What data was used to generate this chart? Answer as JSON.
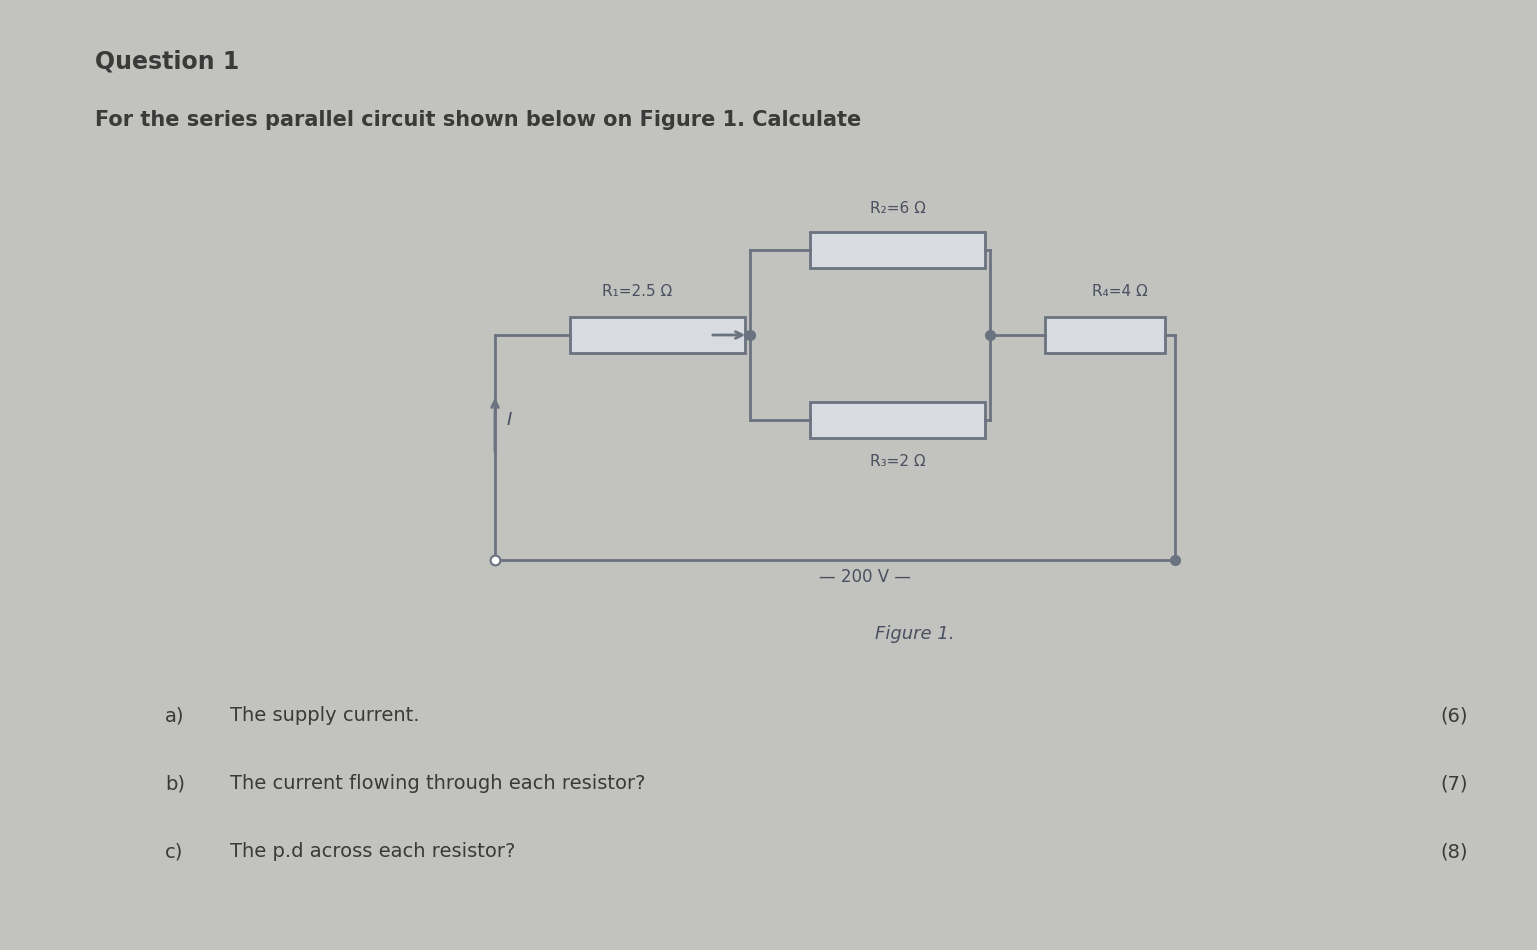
{
  "bg_color": "#c2c2be",
  "title": "Question 1",
  "subtitle": "For the series parallel circuit shown below on Figure 1. Calculate",
  "figure_label": "Figure 1.",
  "questions": [
    {
      "label": "a)",
      "text": "The supply current.",
      "mark": "(6)"
    },
    {
      "label": "b)",
      "text": "The current flowing through each resistor?",
      "mark": "(7)"
    },
    {
      "label": "c)",
      "text": "The p.d across each resistor?",
      "mark": "(8)"
    }
  ],
  "R1_label": "R₁=2.5 Ω",
  "R2_label": "R₂=6 Ω",
  "R3_label": "R₃=2 Ω",
  "R4_label": "R₄=4 Ω",
  "voltage_label": "200 V",
  "current_label": "I",
  "line_color": "#6b7280",
  "text_color": "#4a5060",
  "resistor_fill": "#d8dbe0",
  "resistor_edge": "#6b7280"
}
